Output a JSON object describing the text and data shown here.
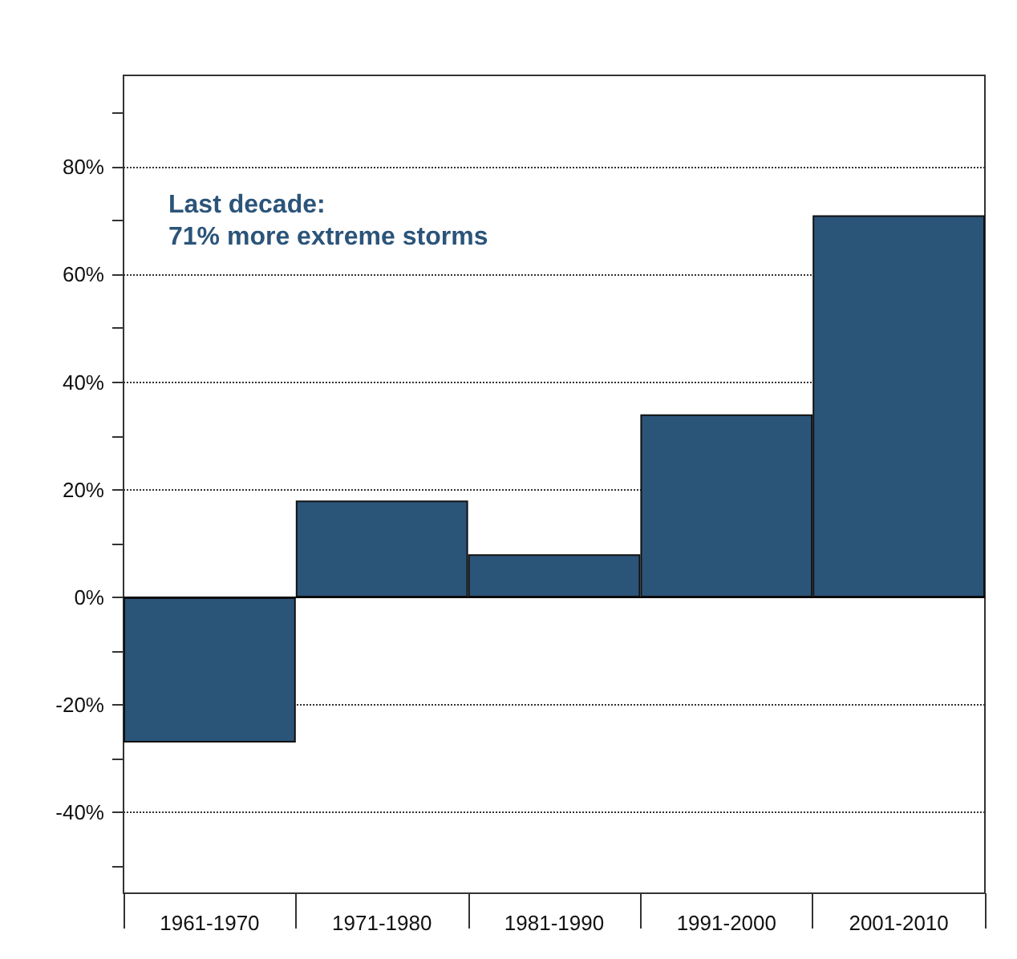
{
  "chart_data": {
    "type": "bar",
    "categories": [
      "1961-1970",
      "1971-1980",
      "1981-1990",
      "1991-2000",
      "2001-2010"
    ],
    "values": [
      -27,
      18,
      8,
      34,
      71
    ],
    "color": "#2b5479",
    "ylim": [
      -55,
      97
    ],
    "yticks": [
      {
        "value": -50,
        "label": null
      },
      {
        "value": -40,
        "label": "-40%"
      },
      {
        "value": -30,
        "label": null
      },
      {
        "value": -20,
        "label": "-20%"
      },
      {
        "value": -10,
        "label": null
      },
      {
        "value": 0,
        "label": "0%"
      },
      {
        "value": 10,
        "label": null
      },
      {
        "value": 20,
        "label": "20%"
      },
      {
        "value": 30,
        "label": null
      },
      {
        "value": 40,
        "label": "40%"
      },
      {
        "value": 50,
        "label": null
      },
      {
        "value": 60,
        "label": "60%"
      },
      {
        "value": 70,
        "label": null
      },
      {
        "value": 80,
        "label": "80%"
      },
      {
        "value": 90,
        "label": null
      }
    ],
    "grid": "y",
    "ref_lines": [
      {
        "axis": "y",
        "value": 0,
        "color": "#000000",
        "line_style": "solid"
      }
    ],
    "annotations": [
      "Last decade:\n71% more extreme storms"
    ]
  }
}
